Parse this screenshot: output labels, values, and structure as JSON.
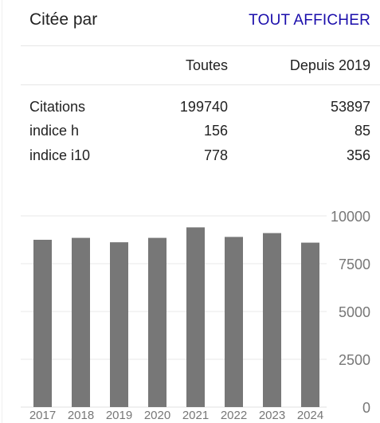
{
  "header": {
    "title": "Citée par",
    "view_all_label": "TOUT AFFICHER"
  },
  "table": {
    "columns": [
      "Toutes",
      "Depuis 2019"
    ],
    "rows": [
      {
        "label": "Citations",
        "all": "199740",
        "since": "53897"
      },
      {
        "label": "indice h",
        "all": "156",
        "since": "85"
      },
      {
        "label": "indice i10",
        "all": "778",
        "since": "356"
      }
    ]
  },
  "chart_data": {
    "type": "bar",
    "categories": [
      "2017",
      "2018",
      "2019",
      "2020",
      "2021",
      "2022",
      "2023",
      "2024"
    ],
    "values": [
      8750,
      8850,
      8620,
      8850,
      9400,
      8900,
      9100,
      8600
    ],
    "yticks": [
      "0",
      "2500",
      "5000",
      "7500",
      "10000"
    ],
    "ylim": [
      0,
      10000
    ],
    "bar_color": "#777777",
    "grid": true
  }
}
